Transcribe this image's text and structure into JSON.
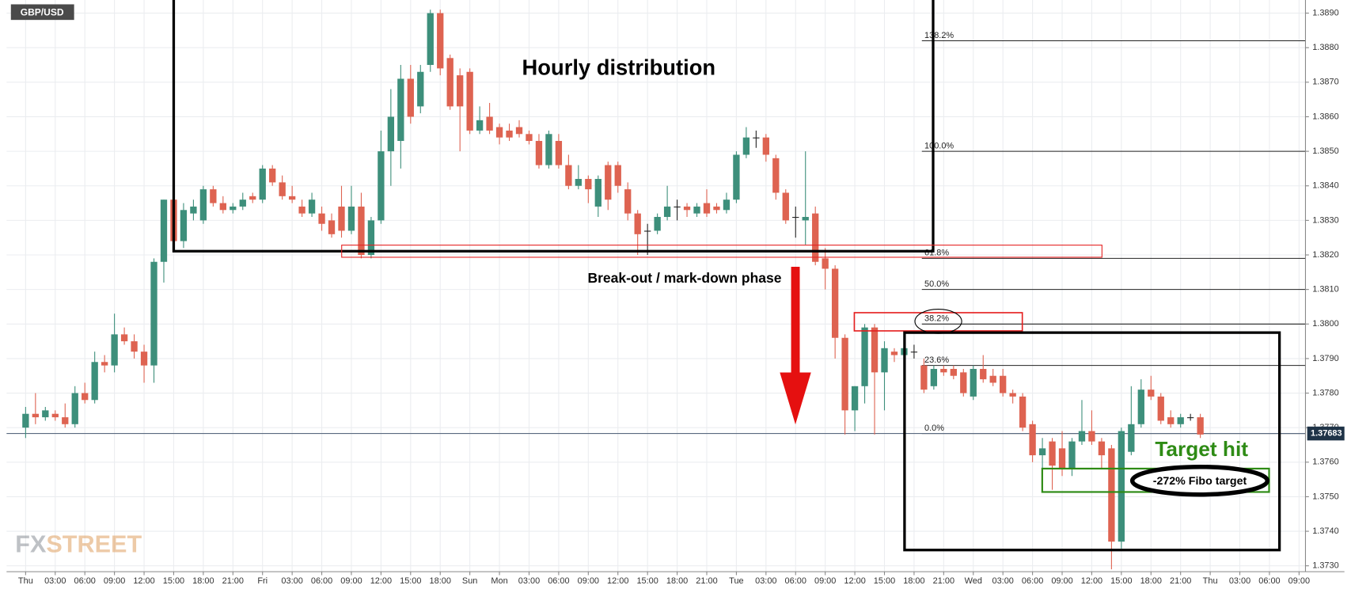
{
  "chart_data": {
    "type": "candlestick",
    "title": "GBP/USD",
    "brand": [
      "FX",
      "STREET"
    ],
    "up_color": "#3d8f7b",
    "down_color": "#de6351",
    "grid": true,
    "categories": [
      "Thu",
      null,
      null,
      "03:00",
      null,
      null,
      "06:00",
      null,
      null,
      "09:00",
      null,
      null,
      "12:00",
      null,
      null,
      "15:00",
      null,
      null,
      "18:00",
      null,
      null,
      "21:00",
      null,
      null,
      "Fri",
      null,
      null,
      "03:00",
      null,
      null,
      "06:00",
      null,
      null,
      "09:00",
      null,
      null,
      "12:00",
      null,
      null,
      "15:00",
      null,
      null,
      "18:00",
      null,
      null,
      "Sun",
      null,
      null,
      "Mon",
      null,
      null,
      "03:00",
      null,
      null,
      "06:00",
      null,
      null,
      "09:00",
      null,
      null,
      "12:00",
      null,
      null,
      "15:00",
      null,
      null,
      "18:00",
      null,
      null,
      "21:00",
      null,
      null,
      "Tue",
      null,
      null,
      "03:00",
      null,
      null,
      "06:00",
      null,
      null,
      "09:00",
      null,
      null,
      "12:00",
      null,
      null,
      "15:00",
      null,
      null,
      "18:00",
      null,
      null,
      "21:00",
      null,
      null,
      "Wed",
      null,
      null,
      "03:00",
      null,
      null,
      "06:00",
      null,
      null,
      "09:00",
      null,
      null,
      "12:00",
      null,
      null,
      "15:00",
      null,
      null,
      "18:00",
      null,
      null,
      "21:00",
      null,
      null,
      "Thu",
      null,
      null,
      "03:00",
      null,
      null,
      "06:00",
      null,
      null,
      "09:00"
    ],
    "open": [
      1.377,
      1.3774,
      1.3773,
      1.3774,
      1.3773,
      1.3771,
      1.378,
      1.3778,
      1.3789,
      1.3788,
      1.3797,
      1.3795,
      1.3792,
      1.3788,
      1.3818,
      1.3836,
      1.3824,
      1.3832,
      1.383,
      1.3839,
      1.3835,
      1.3833,
      1.3834,
      1.3837,
      1.3836,
      1.3845,
      1.3841,
      1.3837,
      1.3834,
      1.3832,
      1.3832,
      1.383,
      1.3834,
      1.3827,
      1.3834,
      1.382,
      1.383,
      1.385,
      1.3853,
      1.3871,
      1.3863,
      1.3875,
      1.389,
      1.3877,
      1.3872,
      1.3873,
      1.3856,
      1.386,
      1.3857,
      1.3856,
      1.3857,
      1.3855,
      1.3853,
      1.3846,
      1.3853,
      1.3846,
      1.384,
      1.3842,
      1.3834,
      1.3846,
      1.3846,
      1.3839,
      1.3832,
      1.3827,
      1.3827,
      1.3831,
      1.3834,
      1.3834,
      1.3832,
      1.3835,
      1.3834,
      1.3833,
      1.3836,
      1.3849,
      1.3854,
      1.3854,
      1.3848,
      1.3838,
      1.3831,
      1.383,
      1.3832,
      1.3819,
      1.3816,
      1.3796,
      1.3775,
      1.3782,
      1.3799,
      1.3786,
      1.3792,
      1.3791,
      1.3792,
      1.3788,
      1.3782,
      1.3787,
      1.3787,
      1.3786,
      1.3779,
      1.3787,
      1.3785,
      1.3785,
      1.378,
      1.3779,
      1.3771,
      1.3762,
      1.3766,
      1.3764,
      1.3758,
      1.3766,
      1.3769,
      1.3766,
      1.3764,
      1.3737,
      1.3763,
      1.3771,
      1.3781,
      1.3779,
      1.3773,
      1.3771,
      1.3773,
      1.3773,
      null,
      null,
      null,
      null,
      null,
      null,
      null,
      null,
      null,
      null
    ],
    "high": [
      1.3776,
      1.378,
      1.3776,
      1.3775,
      1.3777,
      1.3782,
      1.3783,
      1.3792,
      1.3791,
      1.3803,
      1.3799,
      1.3797,
      1.3794,
      1.3819,
      1.3836,
      1.3837,
      1.3835,
      1.3836,
      1.384,
      1.384,
      1.3837,
      1.3835,
      1.3838,
      1.3838,
      1.3846,
      1.3846,
      1.3843,
      1.384,
      1.3836,
      1.3838,
      1.3834,
      1.3832,
      1.384,
      1.384,
      1.3838,
      1.3831,
      1.3856,
      1.3868,
      1.3875,
      1.3875,
      1.3875,
      1.3891,
      1.3891,
      1.3878,
      1.3874,
      1.3874,
      1.3863,
      1.3864,
      1.3858,
      1.3858,
      1.3859,
      1.3856,
      1.3855,
      1.3856,
      1.3855,
      1.3849,
      1.3846,
      1.3843,
      1.3843,
      1.3847,
      1.3847,
      1.3841,
      1.3833,
      1.3829,
      1.3832,
      1.384,
      1.3836,
      1.3835,
      1.3835,
      1.3839,
      1.3835,
      1.3838,
      1.385,
      1.3857,
      1.3856,
      1.3855,
      1.3849,
      1.3839,
      1.3834,
      1.385,
      1.3834,
      1.3822,
      1.3817,
      1.3797,
      1.3782,
      1.38,
      1.38,
      1.3795,
      1.3793,
      1.3795,
      1.3794,
      1.379,
      1.3788,
      1.3788,
      1.3788,
      1.3787,
      1.3788,
      1.3791,
      1.3787,
      1.3787,
      1.3781,
      1.378,
      1.3772,
      1.3767,
      1.3767,
      1.3769,
      1.3767,
      1.3778,
      1.3775,
      1.3767,
      1.3765,
      1.377,
      1.3782,
      1.3784,
      1.3785,
      1.378,
      1.3775,
      1.3774,
      1.3774,
      1.3774,
      null,
      null,
      null,
      null,
      null,
      null,
      null,
      null,
      null,
      null
    ],
    "low": [
      1.3767,
      1.3771,
      1.3772,
      1.3772,
      1.377,
      1.377,
      1.3777,
      1.3777,
      1.3786,
      1.3786,
      1.3794,
      1.379,
      1.3783,
      1.3783,
      1.3812,
      1.3822,
      1.3822,
      1.383,
      1.3829,
      1.3834,
      1.3832,
      1.3832,
      1.3833,
      1.3835,
      1.3835,
      1.384,
      1.3836,
      1.3835,
      1.3831,
      1.3831,
      1.3827,
      1.3825,
      1.3825,
      1.3826,
      1.3819,
      1.3819,
      1.3829,
      1.384,
      1.3845,
      1.3858,
      1.3861,
      1.3873,
      1.3872,
      1.3862,
      1.385,
      1.3855,
      1.3855,
      1.3855,
      1.3852,
      1.3853,
      1.3854,
      1.3852,
      1.3845,
      1.3845,
      1.3845,
      1.3839,
      1.3839,
      1.3835,
      1.3831,
      1.3833,
      1.3838,
      1.383,
      1.382,
      1.382,
      1.3826,
      1.383,
      1.383,
      1.3831,
      1.3831,
      1.3831,
      1.3832,
      1.3832,
      1.3835,
      1.3848,
      1.3851,
      1.3847,
      1.3836,
      1.3829,
      1.3825,
      1.3823,
      1.3817,
      1.381,
      1.379,
      1.3768,
      1.3769,
      1.3777,
      1.3768,
      1.3775,
      1.3789,
      1.379,
      1.379,
      1.378,
      1.3781,
      1.3785,
      1.3784,
      1.3779,
      1.3778,
      1.3783,
      1.3782,
      1.3779,
      1.3777,
      1.3769,
      1.376,
      1.3756,
      1.3752,
      1.3756,
      1.3756,
      1.3765,
      1.3765,
      1.3758,
      1.3729,
      1.3735,
      1.3762,
      1.377,
      1.3778,
      1.3771,
      1.377,
      1.377,
      1.3772,
      1.3767,
      null,
      null,
      null,
      null,
      null,
      null,
      null,
      null,
      null,
      null
    ],
    "close": [
      1.3774,
      1.3773,
      1.3775,
      1.3773,
      1.3771,
      1.378,
      1.3778,
      1.3789,
      1.3788,
      1.3797,
      1.3795,
      1.3792,
      1.3788,
      1.3818,
      1.3836,
      1.3824,
      1.3833,
      1.3834,
      1.3839,
      1.3835,
      1.3833,
      1.3834,
      1.3836,
      1.3836,
      1.3845,
      1.3841,
      1.3837,
      1.3836,
      1.3832,
      1.3836,
      1.3829,
      1.3826,
      1.3827,
      1.3834,
      1.382,
      1.383,
      1.385,
      1.386,
      1.3871,
      1.386,
      1.3873,
      1.389,
      1.3874,
      1.3863,
      1.3863,
      1.3856,
      1.3859,
      1.3856,
      1.3854,
      1.3854,
      1.3855,
      1.3853,
      1.3846,
      1.3855,
      1.3846,
      1.384,
      1.3842,
      1.3839,
      1.3842,
      1.3836,
      1.384,
      1.3832,
      1.3826,
      1.3827,
      1.3831,
      1.3834,
      1.3834,
      1.3833,
      1.3834,
      1.3832,
      1.3833,
      1.3836,
      1.3849,
      1.3854,
      1.3854,
      1.3849,
      1.3838,
      1.383,
      1.3831,
      1.3831,
      1.3818,
      1.3816,
      1.3796,
      1.3775,
      1.3782,
      1.3799,
      1.3786,
      1.3793,
      1.3791,
      1.3793,
      1.3792,
      1.3781,
      1.3787,
      1.3786,
      1.3785,
      1.378,
      1.3787,
      1.3784,
      1.3783,
      1.378,
      1.3779,
      1.377,
      1.3762,
      1.3764,
      1.3759,
      1.3758,
      1.3766,
      1.3769,
      1.3766,
      1.3762,
      1.3737,
      1.3769,
      1.3771,
      1.3781,
      1.3779,
      1.3772,
      1.3771,
      1.3773,
      1.3773,
      1.3768,
      null,
      null,
      null,
      null,
      null,
      null,
      null,
      null,
      null,
      null
    ],
    "ylim": [
      1.37283,
      1.38938
    ],
    "yticks": [
      {
        "value": 1.389,
        "label": "1.3890"
      },
      {
        "value": 1.388,
        "label": "1.3880"
      },
      {
        "value": 1.387,
        "label": "1.3870"
      },
      {
        "value": 1.386,
        "label": "1.3860"
      },
      {
        "value": 1.385,
        "label": "1.3850"
      },
      {
        "value": 1.384,
        "label": "1.3840"
      },
      {
        "value": 1.383,
        "label": "1.3830"
      },
      {
        "value": 1.382,
        "label": "1.3820"
      },
      {
        "value": 1.381,
        "label": "1.3810"
      },
      {
        "value": 1.38,
        "label": "1.3800"
      },
      {
        "value": 1.379,
        "label": "1.3790"
      },
      {
        "value": 1.378,
        "label": "1.3780"
      },
      {
        "value": 1.377,
        "label": "1.3770"
      },
      {
        "value": 1.376,
        "label": "1.3760"
      },
      {
        "value": 1.375,
        "label": "1.3750"
      },
      {
        "value": 1.374,
        "label": "1.3740"
      },
      {
        "value": 1.373,
        "label": "1.3730"
      }
    ],
    "last_price": 1.37683,
    "fib_levels": [
      {
        "value": 1.3882,
        "label": "138.2%"
      },
      {
        "value": 1.385,
        "label": "100.0%"
      },
      {
        "value": 1.3819,
        "label": "61.8%"
      },
      {
        "value": 1.381,
        "label": "50.0%"
      },
      {
        "value": 1.38,
        "label": "38.2%"
      },
      {
        "value": 1.3788,
        "label": "23.6%"
      },
      {
        "value": 1.37683,
        "label": "0.0%"
      }
    ],
    "annotations": {
      "distribution": "Hourly distribution",
      "breakout": "Break-out / mark-down phase",
      "target": "Target hit",
      "fibo_target": "-272% Fibo target"
    }
  }
}
